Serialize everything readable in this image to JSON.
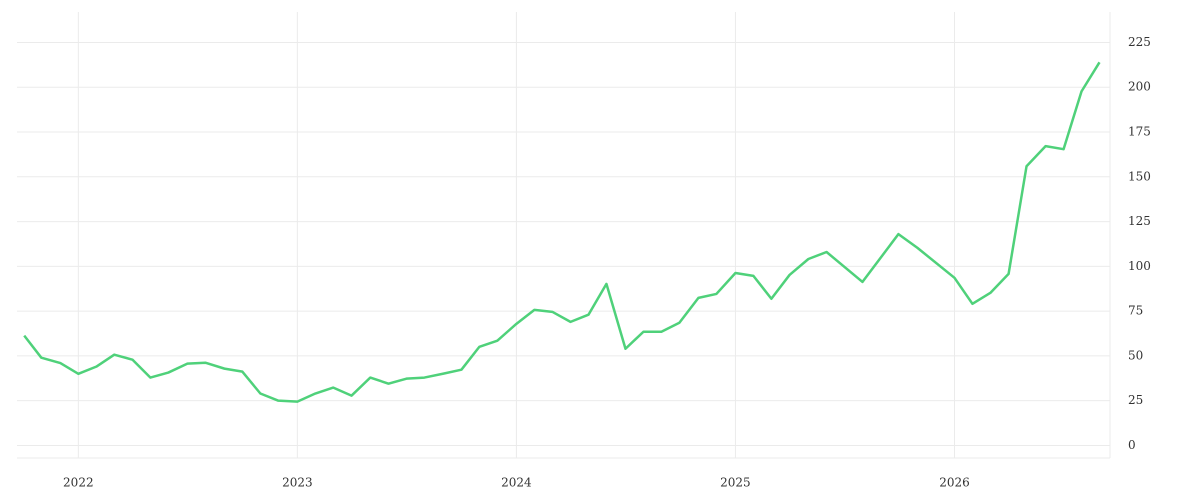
{
  "chart_data": {
    "type": "line",
    "x": [
      2021.753,
      2021.831,
      2021.918,
      2022.0,
      2022.082,
      2022.164,
      2022.247,
      2022.329,
      2022.411,
      2022.498,
      2022.58,
      2022.667,
      2022.749,
      2022.831,
      2022.913,
      2023.0,
      2023.082,
      2023.164,
      2023.247,
      2023.333,
      2023.416,
      2023.498,
      2023.58,
      2023.667,
      2023.749,
      2023.831,
      2023.913,
      2024.0,
      2024.082,
      2024.164,
      2024.247,
      2024.329,
      2024.411,
      2024.498,
      2024.58,
      2024.662,
      2024.744,
      2024.831,
      2024.913,
      2025.0,
      2025.082,
      2025.164,
      2025.247,
      2025.333,
      2025.416,
      2025.58,
      2025.744,
      2025.831,
      2026.0,
      2026.082,
      2026.164,
      2026.247,
      2026.329,
      2026.416,
      2026.498,
      2026.58,
      2026.662
    ],
    "series": [
      {
        "color": "#4fd17a",
        "values": [
          61.3,
          49,
          46,
          40,
          44,
          50.7,
          47.9,
          37.9,
          40.7,
          45.7,
          46.2,
          42.9,
          41.2,
          29,
          25,
          24.5,
          29,
          32.3,
          27.8,
          37.9,
          34.5,
          37.3,
          37.9,
          40.1,
          42.3,
          55.1,
          58.5,
          67.9,
          75.7,
          74.6,
          69,
          73,
          90.2,
          54,
          63.5,
          63.5,
          68.5,
          82.4,
          84.6,
          96.3,
          94.7,
          81.9,
          95.2,
          104.1,
          108,
          91.3,
          118,
          110.3,
          93.6,
          79.1,
          85.2,
          95.8,
          155.9,
          167.1,
          165.4,
          197.7,
          213.9
        ]
      }
    ],
    "xlim": [
      2021.72,
      2026.71
    ],
    "xticks": [
      2022,
      2023,
      2024,
      2025,
      2026
    ],
    "ylim": [
      -7,
      242
    ],
    "yticks": [
      0,
      25,
      50,
      75,
      100,
      125,
      150,
      175,
      200,
      225
    ],
    "y_axis_side": "right",
    "grid": true
  }
}
